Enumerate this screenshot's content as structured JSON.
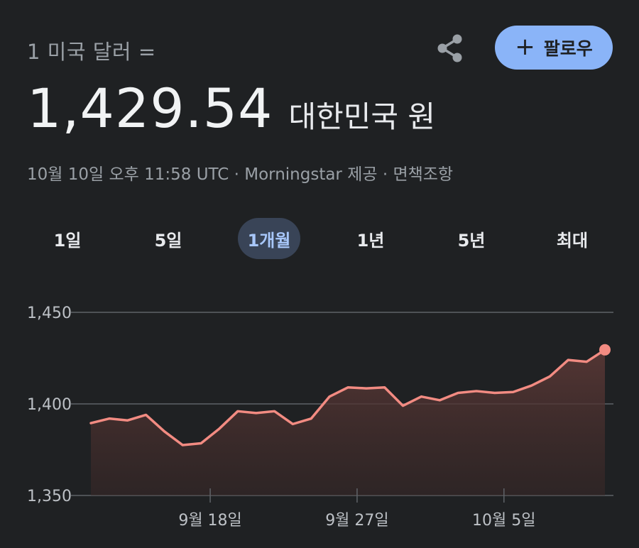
{
  "header": {
    "conversion_label": "1 미국 달러 =",
    "share_icon": "share-icon",
    "follow_button": {
      "icon": "plus-icon",
      "label": "팔로우"
    }
  },
  "rate": {
    "value": "1,429.54",
    "unit": "대한민국 원"
  },
  "meta": "10월 10일 오후 11:58 UTC · Morningstar 제공 · 면책조항",
  "range_tabs": [
    {
      "label": "1일",
      "active": false
    },
    {
      "label": "5일",
      "active": false
    },
    {
      "label": "1개월",
      "active": true
    },
    {
      "label": "1년",
      "active": false
    },
    {
      "label": "5년",
      "active": false
    },
    {
      "label": "최대",
      "active": false
    }
  ],
  "colors": {
    "background": "#1f2123",
    "accent": "#8ab4f8",
    "line": "#f28b82",
    "grid": "#5f6368"
  },
  "chart_data": {
    "type": "area",
    "series": [
      {
        "values": [
          1389.5,
          1392,
          1391,
          1394,
          1385,
          1377.5,
          1378.5,
          1386.5,
          1396,
          1395,
          1396,
          1389,
          1392,
          1404,
          1409,
          1408.5,
          1409,
          1399,
          1404,
          1402,
          1406,
          1407,
          1406,
          1406.5,
          1410,
          1415,
          1424,
          1423,
          1429.54
        ]
      }
    ],
    "ylim": [
      1350,
      1450
    ],
    "y_ticks": [
      {
        "value": 1450,
        "label": "1,450"
      },
      {
        "value": 1400,
        "label": "1,400"
      },
      {
        "value": 1350,
        "label": "1,350"
      }
    ],
    "x_ticks": [
      {
        "index": 6.5,
        "label": "9월 18일"
      },
      {
        "index": 14.5,
        "label": "9월 27일"
      },
      {
        "index": 22.5,
        "label": "10월 5일"
      }
    ],
    "grid": true
  }
}
